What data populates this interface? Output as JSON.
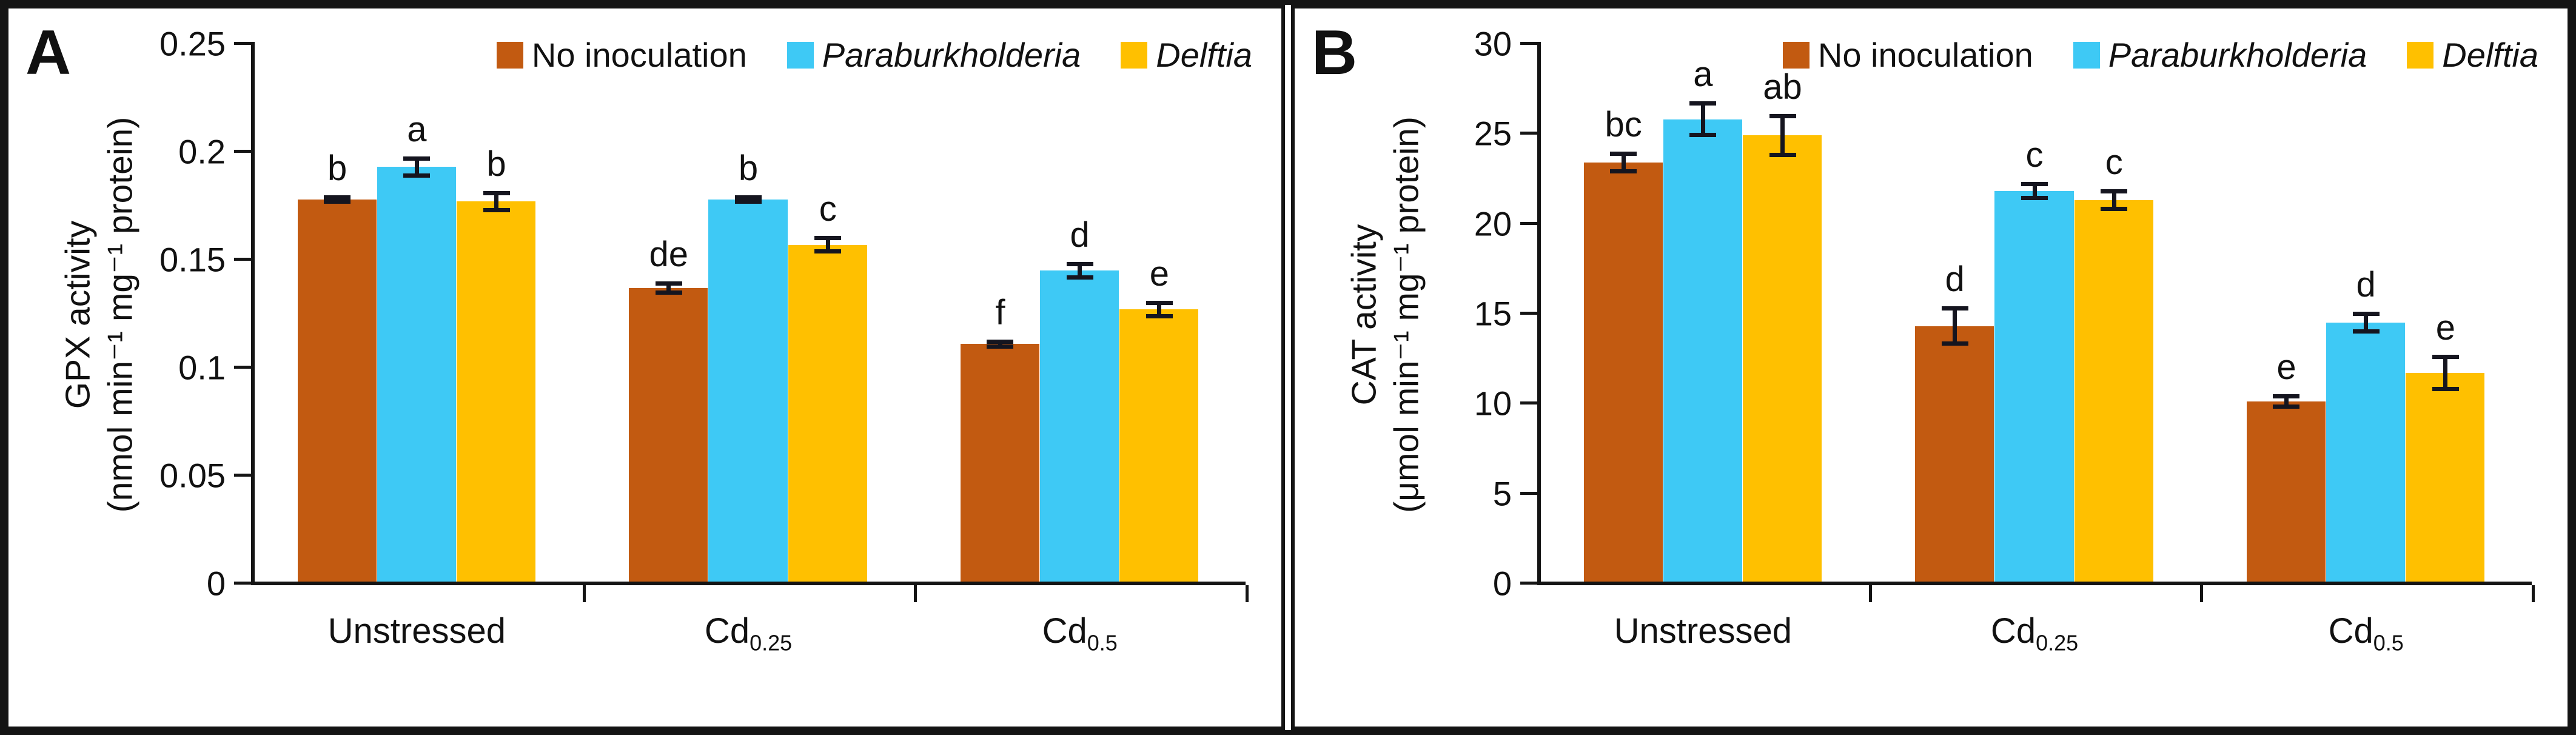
{
  "chart_data": [
    {
      "type": "bar",
      "panel_label": "A",
      "ylabel_line1": "GPX activity",
      "ylabel_line2": "(nmol min⁻¹ mg⁻¹ protein)",
      "ylim": [
        0,
        0.25
      ],
      "ytick_values": [
        0,
        0.05,
        0.1,
        0.15,
        0.2,
        0.25
      ],
      "ytick_labels": [
        "0",
        "0.05",
        "0.1",
        "0.15",
        "0.2",
        "0.25"
      ],
      "grid": false,
      "legend_position": "top-right",
      "categories": [
        {
          "base": "Unstressed",
          "sub": ""
        },
        {
          "base": "Cd",
          "sub": "0.25"
        },
        {
          "base": "Cd",
          "sub": "0.5"
        }
      ],
      "series": [
        {
          "name": "No inoculation",
          "italic": false,
          "color": "#C25A11",
          "values": [
            0.177,
            0.136,
            0.11
          ],
          "errors": [
            0.002,
            0.003,
            0.002
          ],
          "letters": [
            "b",
            "de",
            "f"
          ]
        },
        {
          "name": "Paraburkholderia",
          "italic": true,
          "color": "#3EC9F5",
          "values": [
            0.192,
            0.177,
            0.144
          ],
          "errors": [
            0.005,
            0.002,
            0.004
          ],
          "letters": [
            "a",
            "b",
            "d"
          ]
        },
        {
          "name": "Delftia",
          "italic": true,
          "color": "#FFC000",
          "values": [
            0.176,
            0.156,
            0.126
          ],
          "errors": [
            0.005,
            0.004,
            0.004
          ],
          "letters": [
            "b",
            "c",
            "e"
          ]
        }
      ]
    },
    {
      "type": "bar",
      "panel_label": "B",
      "ylabel_line1": "CAT activity",
      "ylabel_line2": "(μmol min⁻¹ mg⁻¹ protein)",
      "ylim": [
        0,
        30
      ],
      "ytick_values": [
        0,
        5,
        10,
        15,
        20,
        25,
        30
      ],
      "ytick_labels": [
        "0",
        "5",
        "10",
        "15",
        "20",
        "25",
        "30"
      ],
      "grid": false,
      "legend_position": "top-right",
      "categories": [
        {
          "base": "Unstressed",
          "sub": ""
        },
        {
          "base": "Cd",
          "sub": "0.25"
        },
        {
          "base": "Cd",
          "sub": "0.5"
        }
      ],
      "series": [
        {
          "name": "No inoculation",
          "italic": false,
          "color": "#C25A11",
          "values": [
            23.3,
            14.2,
            10.0
          ],
          "errors": [
            0.6,
            1.1,
            0.4
          ],
          "letters": [
            "bc",
            "d",
            "e"
          ]
        },
        {
          "name": "Paraburkholderia",
          "italic": true,
          "color": "#3EC9F5",
          "values": [
            25.7,
            21.7,
            14.4
          ],
          "errors": [
            1.0,
            0.5,
            0.6
          ],
          "letters": [
            "a",
            "c",
            "d"
          ]
        },
        {
          "name": "Delftia",
          "italic": true,
          "color": "#FFC000",
          "values": [
            24.8,
            21.2,
            11.6
          ],
          "errors": [
            1.2,
            0.6,
            1.0
          ],
          "letters": [
            "ab",
            "c",
            "e"
          ]
        }
      ]
    }
  ]
}
